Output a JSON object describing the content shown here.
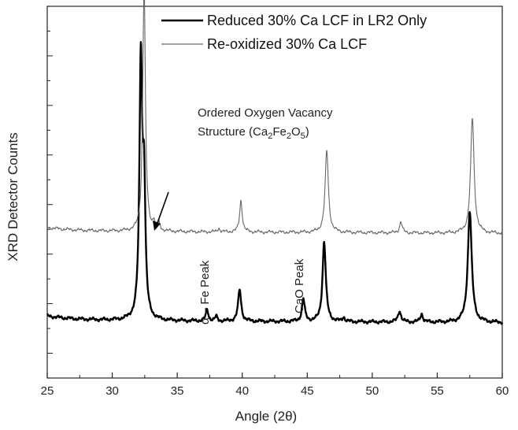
{
  "chart_data": {
    "type": "line",
    "xlabel": "Angle (2θ)",
    "ylabel": "XRD Detector Counts",
    "xlim": [
      25,
      60
    ],
    "ylim": [
      0,
      1
    ],
    "xticks": [
      "25",
      "30",
      "35",
      "40",
      "45",
      "50",
      "55",
      "60"
    ],
    "y_tick_labels_shown": false,
    "grid": false,
    "legend_position": "top-right",
    "series": [
      {
        "name": "Reduced 30% Ca LCF in LR2 Only",
        "color": "#000000",
        "line_weight": "thick",
        "baseline": 0.155,
        "start_offset": 0.012,
        "peaks": [
          {
            "x": 32.2,
            "h": 0.69,
            "w": 0.13
          },
          {
            "x": 32.45,
            "h": 0.33,
            "w": 0.12
          },
          {
            "x": 37.3,
            "h": 0.03,
            "w": 0.12
          },
          {
            "x": 38.0,
            "h": 0.012,
            "w": 0.1
          },
          {
            "x": 39.8,
            "h": 0.085,
            "w": 0.14
          },
          {
            "x": 44.7,
            "h": 0.06,
            "w": 0.13
          },
          {
            "x": 46.3,
            "h": 0.215,
            "w": 0.15
          },
          {
            "x": 47.8,
            "h": 0.012,
            "w": 0.1
          },
          {
            "x": 52.1,
            "h": 0.03,
            "w": 0.14
          },
          {
            "x": 53.8,
            "h": 0.022,
            "w": 0.12
          },
          {
            "x": 57.5,
            "h": 0.3,
            "w": 0.18
          }
        ]
      },
      {
        "name": "Re-oxidized 30% Ca LCF",
        "color": "#666666",
        "line_weight": "thin",
        "baseline": 0.395,
        "start_offset": 0.01,
        "peaks": [
          {
            "x": 32.45,
            "h": 0.665,
            "w": 0.12
          },
          {
            "x": 33.2,
            "h": 0.022,
            "w": 0.1
          },
          {
            "x": 33.6,
            "h": 0.018,
            "w": 0.1
          },
          {
            "x": 38.2,
            "h": 0.01,
            "w": 0.1
          },
          {
            "x": 39.9,
            "h": 0.085,
            "w": 0.12
          },
          {
            "x": 46.5,
            "h": 0.22,
            "w": 0.15
          },
          {
            "x": 52.2,
            "h": 0.03,
            "w": 0.12
          },
          {
            "x": 57.7,
            "h": 0.31,
            "w": 0.16
          }
        ]
      }
    ],
    "annotations": [
      {
        "id": "oov",
        "line1": "Ordered Oxygen Vacancy",
        "line2_prefix": "Structure (Ca",
        "sub1": "2",
        "mid1": "Fe",
        "sub2": "2",
        "mid2": "O",
        "sub3": "5",
        "line2_suffix": ")",
        "points_to_x": 33.3
      },
      {
        "id": "fe",
        "text": "α – Fe Peak",
        "x": 37.4,
        "rotation": -90
      },
      {
        "id": "cao",
        "text": "CaO Peak",
        "x": 44.5,
        "rotation": -90
      }
    ]
  }
}
